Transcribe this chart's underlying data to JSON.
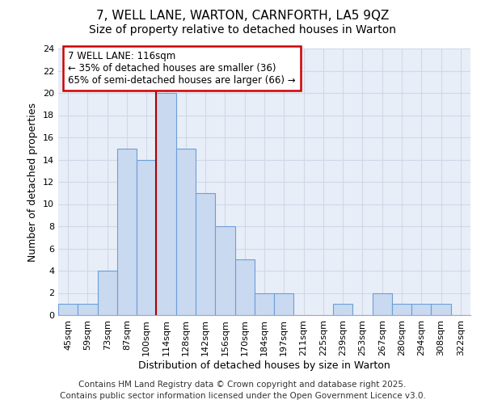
{
  "title1": "7, WELL LANE, WARTON, CARNFORTH, LA5 9QZ",
  "title2": "Size of property relative to detached houses in Warton",
  "xlabel": "Distribution of detached houses by size in Warton",
  "ylabel": "Number of detached properties",
  "categories": [
    "45sqm",
    "59sqm",
    "73sqm",
    "87sqm",
    "100sqm",
    "114sqm",
    "128sqm",
    "142sqm",
    "156sqm",
    "170sqm",
    "184sqm",
    "197sqm",
    "211sqm",
    "225sqm",
    "239sqm",
    "253sqm",
    "267sqm",
    "280sqm",
    "294sqm",
    "308sqm",
    "322sqm"
  ],
  "values": [
    1,
    1,
    4,
    15,
    14,
    20,
    15,
    11,
    8,
    5,
    2,
    2,
    0,
    0,
    1,
    0,
    2,
    1,
    1,
    1,
    0
  ],
  "bar_color": "#c9d9f0",
  "bar_edge_color": "#6a9fd8",
  "vline_x_index": 5,
  "vline_color": "#aa0000",
  "annotation_text": "7 WELL LANE: 116sqm\n← 35% of detached houses are smaller (36)\n65% of semi-detached houses are larger (66) →",
  "annotation_box_color": "#ffffff",
  "annotation_box_edge": "#cc0000",
  "ylim": [
    0,
    24
  ],
  "yticks": [
    0,
    2,
    4,
    6,
    8,
    10,
    12,
    14,
    16,
    18,
    20,
    22,
    24
  ],
  "bg_color": "#e8eef8",
  "grid_color": "#d0d8e8",
  "footer": "Contains HM Land Registry data © Crown copyright and database right 2025.\nContains public sector information licensed under the Open Government Licence v3.0.",
  "title1_fontsize": 11,
  "title2_fontsize": 10,
  "xlabel_fontsize": 9,
  "ylabel_fontsize": 9,
  "tick_fontsize": 8,
  "annotation_fontsize": 8.5,
  "footer_fontsize": 7.5
}
